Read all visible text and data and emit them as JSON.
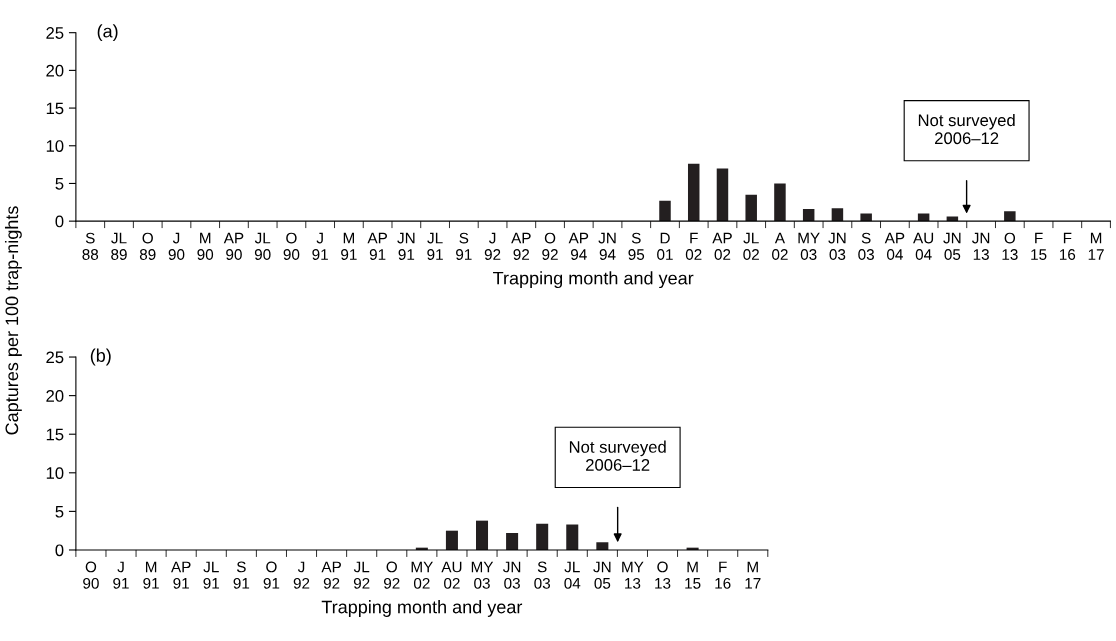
{
  "chart_data": [
    {
      "type": "bar",
      "xlabel": "Trapping month and year",
      "ylabel": "Captures per 100 trap-nights",
      "categories": [
        "S\n88",
        "JL\n89",
        "O\n89",
        "J\n90",
        "M\n90",
        "AP\n90",
        "JL\n90",
        "O\n90",
        "J\n91",
        "M\n91",
        "AP\n91",
        "JN\n91",
        "JL\n91",
        "S\n91",
        "J\n92",
        "AP\n92",
        "O\n92",
        "AP\n94",
        "JN\n94",
        "S\n95",
        "D\n01",
        "F\n02",
        "AP\n02",
        "JL\n02",
        "A\n02",
        "MY\n03",
        "JN\n03",
        "S\n03",
        "AP\n04",
        "AU\n04",
        "JN\n05",
        "JN\n13",
        "O\n13",
        "F\n15",
        "F\n16",
        "M\n17"
      ],
      "values": [
        0,
        0,
        0,
        0,
        0,
        0,
        0,
        0,
        0,
        0,
        0,
        0,
        0,
        0,
        0,
        0,
        0,
        0,
        0,
        0,
        2.7,
        7.6,
        7.0,
        3.5,
        5.0,
        1.6,
        1.7,
        1.0,
        0,
        1.0,
        0.6,
        0,
        1.3,
        0,
        0,
        0
      ],
      "color": "#231f20",
      "ylim": [
        0,
        25
      ],
      "yticks": [
        0,
        5,
        10,
        15,
        20,
        25
      ],
      "grid": false,
      "legend": false,
      "annotations": [
        "(a)",
        "Not surveyed\n2006–12"
      ]
    },
    {
      "type": "bar",
      "xlabel": "Trapping month and year",
      "categories": [
        "O\n90",
        "J\n91",
        "M\n91",
        "AP\n91",
        "JL\n91",
        "S\n91",
        "O\n91",
        "J\n92",
        "AP\n92",
        "JL\n92",
        "O\n92",
        "MY\n02",
        "AU\n02",
        "MY\n03",
        "JN\n03",
        "S\n03",
        "JL\n04",
        "JN\n05",
        "MY\n13",
        "O\n13",
        "M\n15",
        "F\n16",
        "M\n17"
      ],
      "values": [
        0,
        0,
        0,
        0,
        0,
        0,
        0,
        0,
        0,
        0,
        0,
        0.3,
        2.5,
        3.8,
        2.2,
        3.4,
        3.3,
        1.0,
        0,
        0,
        0.3,
        0,
        0
      ],
      "color": "#231f20",
      "ylim": [
        0,
        25
      ],
      "yticks": [
        0,
        5,
        10,
        15,
        20,
        25
      ],
      "grid": false,
      "legend": false,
      "annotations": [
        "(b)",
        "Not surveyed\n2006–12"
      ]
    }
  ]
}
